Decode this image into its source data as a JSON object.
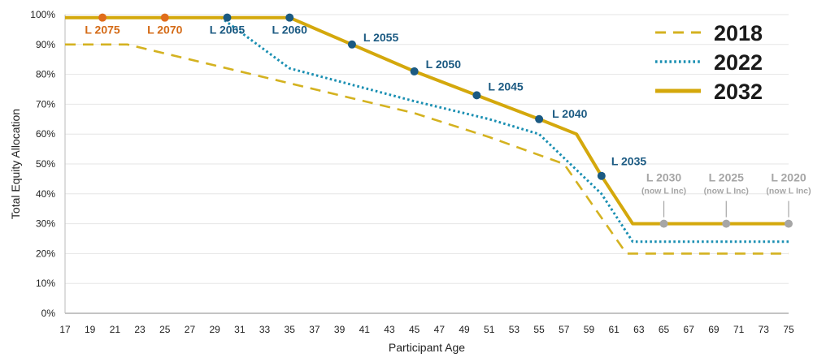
{
  "chart_data": {
    "type": "line",
    "title": "",
    "xlabel": "Participant Age",
    "ylabel": "Total Equity Allocation",
    "xlim": [
      17,
      75
    ],
    "ylim": [
      0,
      100
    ],
    "x_ticks": [
      "17",
      "19",
      "21",
      "23",
      "25",
      "27",
      "29",
      "31",
      "33",
      "35",
      "37",
      "39",
      "41",
      "43",
      "45",
      "47",
      "49",
      "51",
      "53",
      "55",
      "57",
      "59",
      "61",
      "63",
      "65",
      "67",
      "69",
      "71",
      "73",
      "75"
    ],
    "y_ticks": [
      "0%",
      "10%",
      "20%",
      "30%",
      "40%",
      "50%",
      "60%",
      "70%",
      "80%",
      "90%",
      "100%"
    ],
    "legend_position": "top-right",
    "series": [
      {
        "name": "2018",
        "style": "dashed",
        "color": "#d4b220",
        "points": [
          [
            17,
            90
          ],
          [
            22,
            90
          ],
          [
            35,
            77
          ],
          [
            45,
            67
          ],
          [
            51,
            59
          ],
          [
            57,
            50
          ],
          [
            62,
            20
          ],
          [
            75,
            20
          ]
        ]
      },
      {
        "name": "2022",
        "style": "dotted",
        "color": "#1a8fb2",
        "points": [
          [
            17,
            99
          ],
          [
            29.5,
            99
          ],
          [
            35,
            82
          ],
          [
            45,
            71
          ],
          [
            51,
            65
          ],
          [
            55,
            60
          ],
          [
            60,
            40
          ],
          [
            62.5,
            24
          ],
          [
            75,
            24
          ]
        ]
      },
      {
        "name": "2032",
        "style": "solid",
        "color": "#d4a80c",
        "points": [
          [
            17,
            99
          ],
          [
            35,
            99
          ],
          [
            40,
            90
          ],
          [
            45,
            81
          ],
          [
            50,
            73
          ],
          [
            55,
            65
          ],
          [
            58,
            60
          ],
          [
            60,
            46
          ],
          [
            62.5,
            30
          ],
          [
            75,
            30
          ]
        ]
      }
    ],
    "markers": [
      {
        "label": "L 2075",
        "x": 20,
        "y": 99,
        "color": "#e06c1a",
        "label_color": "#d46b17"
      },
      {
        "label": "L 2070",
        "x": 25,
        "y": 99,
        "color": "#e06c1a",
        "label_color": "#d46b17"
      },
      {
        "label": "L 2065",
        "x": 30,
        "y": 99,
        "color": "#1b5a82",
        "label_color": "#1b5a82"
      },
      {
        "label": "L 2060",
        "x": 35,
        "y": 99,
        "color": "#1b5a82",
        "label_color": "#1b5a82"
      },
      {
        "label": "L 2055",
        "x": 40,
        "y": 90,
        "color": "#1b5a82",
        "label_color": "#1b5a82"
      },
      {
        "label": "L 2050",
        "x": 45,
        "y": 81,
        "color": "#1b5a82",
        "label_color": "#1b5a82"
      },
      {
        "label": "L 2045",
        "x": 50,
        "y": 73,
        "color": "#1b5a82",
        "label_color": "#1b5a82"
      },
      {
        "label": "L 2040",
        "x": 55,
        "y": 65,
        "color": "#1b5a82",
        "label_color": "#1b5a82"
      },
      {
        "label": "L 2035",
        "x": 60,
        "y": 46,
        "color": "#1b5a82",
        "label_color": "#1b5a82"
      },
      {
        "label": "L 2030",
        "sublabel": "(now L Inc)",
        "x": 65,
        "y": 30,
        "color": "#a6a6a6",
        "label_color": "#a6a6a6"
      },
      {
        "label": "L 2025",
        "sublabel": "(now L Inc)",
        "x": 70,
        "y": 30,
        "color": "#a6a6a6",
        "label_color": "#a6a6a6"
      },
      {
        "label": "L 2020",
        "sublabel": "(now L Inc)",
        "x": 75,
        "y": 30,
        "color": "#a6a6a6",
        "label_color": "#a6a6a6"
      }
    ]
  }
}
